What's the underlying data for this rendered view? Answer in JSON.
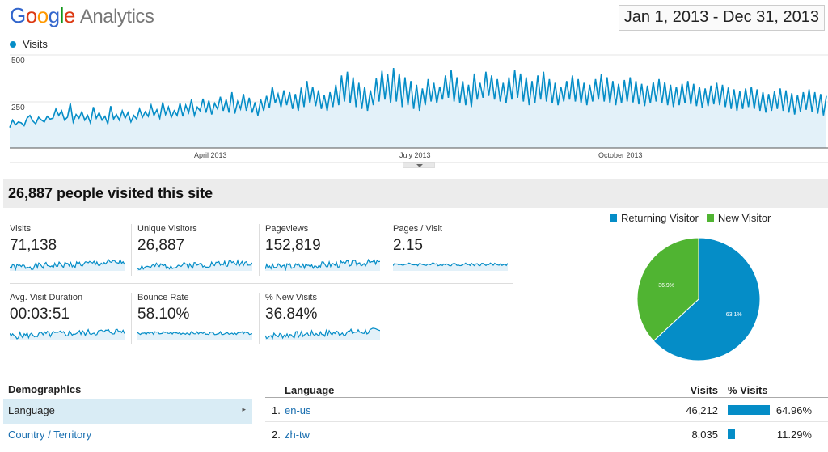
{
  "header": {
    "logo_letters": [
      "G",
      "o",
      "o",
      "g",
      "l",
      "e"
    ],
    "logo_word": "Analytics",
    "date_range": "Jan 1, 2013 - Dec 31, 2013"
  },
  "legend": {
    "series_name": "Visits",
    "color": "#058dc7"
  },
  "chart_data": {
    "type": "area",
    "series": [
      {
        "name": "Visits",
        "values": [
          110,
          150,
          125,
          140,
          135,
          120,
          160,
          175,
          145,
          130,
          165,
          150,
          140,
          170,
          155,
          160,
          210,
          175,
          200,
          150,
          165,
          240,
          140,
          180,
          160,
          195,
          150,
          175,
          135,
          220,
          160,
          190,
          150,
          170,
          130,
          225,
          155,
          180,
          150,
          200,
          160,
          190,
          140,
          175,
          155,
          210,
          165,
          195,
          170,
          230,
          175,
          205,
          160,
          245,
          180,
          220,
          165,
          200,
          175,
          240,
          170,
          230,
          190,
          260,
          175,
          220,
          200,
          265,
          190,
          255,
          180,
          240,
          210,
          275,
          200,
          260,
          190,
          300,
          185,
          250,
          210,
          290,
          200,
          270,
          190,
          245,
          175,
          260,
          200,
          280,
          215,
          330,
          240,
          290,
          220,
          310,
          230,
          300,
          210,
          290,
          200,
          325,
          220,
          360,
          240,
          330,
          225,
          310,
          210,
          285,
          200,
          300,
          220,
          340,
          230,
          390,
          250,
          410,
          240,
          380,
          220,
          350,
          210,
          330,
          200,
          310,
          230,
          375,
          250,
          415,
          260,
          395,
          240,
          430,
          250,
          400,
          220,
          380,
          230,
          360,
          210,
          340,
          200,
          320,
          230,
          370,
          250,
          350,
          240,
          330,
          260,
          390,
          270,
          420,
          250,
          380,
          240,
          360,
          230,
          340,
          220,
          400,
          260,
          350,
          270,
          410,
          280,
          390,
          260,
          370,
          250,
          350,
          240,
          380,
          260,
          420,
          270,
          400,
          250,
          380,
          230,
          360,
          240,
          390,
          260,
          410,
          250,
          370,
          240,
          350,
          230,
          330,
          250,
          360,
          260,
          390,
          250,
          370,
          240,
          350,
          230,
          340,
          250,
          370,
          260,
          395,
          250,
          380,
          240,
          360,
          230,
          345,
          240,
          365,
          250,
          380,
          245,
          360,
          235,
          345,
          225,
          335,
          240,
          355,
          250,
          370,
          240,
          355,
          230,
          340,
          220,
          330,
          230,
          345,
          240,
          360,
          235,
          345,
          225,
          330,
          215,
          320,
          225,
          335,
          235,
          350,
          230,
          340,
          220,
          325,
          210,
          315,
          200,
          305,
          210,
          320,
          220,
          330,
          210,
          315,
          200,
          300,
          190,
          290,
          200,
          305,
          210,
          320,
          200,
          310,
          190,
          295,
          180,
          285,
          195,
          300,
          205,
          315,
          195,
          300,
          185,
          290,
          175,
          280
        ]
      }
    ],
    "x_tick_labels": [
      "April 2013",
      "July 2013",
      "October 2013"
    ],
    "y_tick_labels": [
      "500",
      "250"
    ],
    "ylim": [
      0,
      500
    ]
  },
  "summary": {
    "headline": "26,887 people visited this site"
  },
  "metrics": [
    {
      "label": "Visits",
      "value": "71,138"
    },
    {
      "label": "Unique Visitors",
      "value": "26,887"
    },
    {
      "label": "Pageviews",
      "value": "152,819"
    },
    {
      "label": "Pages / Visit",
      "value": "2.15"
    },
    {
      "label": "Avg. Visit Duration",
      "value": "00:03:51"
    },
    {
      "label": "Bounce Rate",
      "value": "58.10%"
    },
    {
      "label": "% New Visits",
      "value": "36.84%"
    }
  ],
  "pie": {
    "legend": [
      {
        "label": "Returning Visitor",
        "color": "#058dc7"
      },
      {
        "label": "New Visitor",
        "color": "#50b432"
      }
    ],
    "slices": [
      {
        "label": "63.1%",
        "value": 63.1,
        "color": "#058dc7"
      },
      {
        "label": "36.9%",
        "value": 36.9,
        "color": "#50b432"
      }
    ]
  },
  "demographics": {
    "title": "Demographics",
    "items": [
      {
        "label": "Language",
        "selected": true
      },
      {
        "label": "Country / Territory",
        "selected": false
      }
    ]
  },
  "language_table": {
    "headers": {
      "language": "Language",
      "visits": "Visits",
      "pct": "% Visits"
    },
    "rows": [
      {
        "num": "1.",
        "name": "en-us",
        "visits": "46,212",
        "pct": "64.96%",
        "fraction": 0.6496
      },
      {
        "num": "2.",
        "name": "zh-tw",
        "visits": "8,035",
        "pct": "11.29%",
        "fraction": 0.1129
      }
    ]
  }
}
